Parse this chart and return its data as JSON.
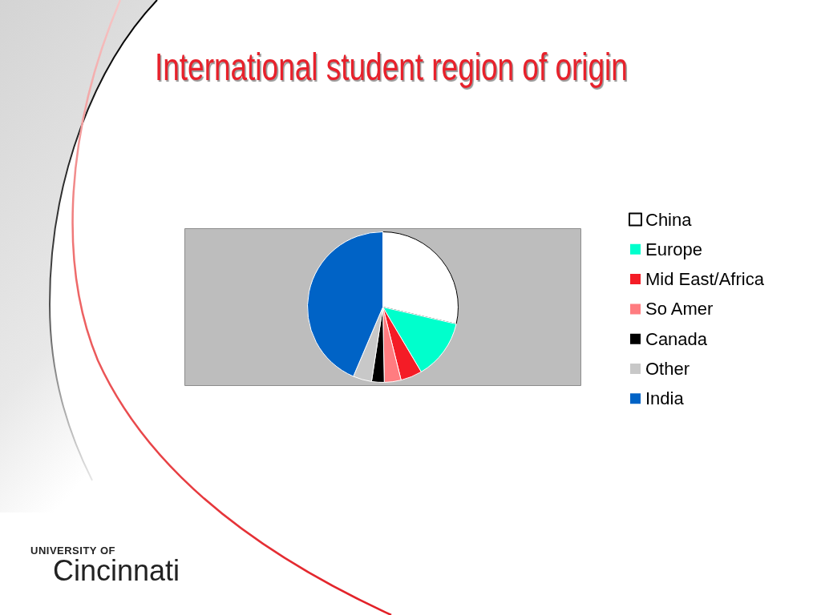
{
  "chart_data": {
    "type": "pie",
    "title": "International student region of origin",
    "categories": [
      "China",
      "Europe",
      "Mid East/Africa",
      "So Amer",
      "Canada",
      "Other",
      "India"
    ],
    "values": [
      28.6,
      12.9,
      4.6,
      3.6,
      2.7,
      4.0,
      43.6
    ],
    "colors": [
      "#ffffff",
      "#00ffcc",
      "#f41c26",
      "#ff7c80",
      "#000000",
      "#c8c8c8",
      "#0063c6"
    ],
    "legend": "right",
    "annotations": [
      "UNIVERSITY OF",
      "Cincinnati"
    ]
  }
}
